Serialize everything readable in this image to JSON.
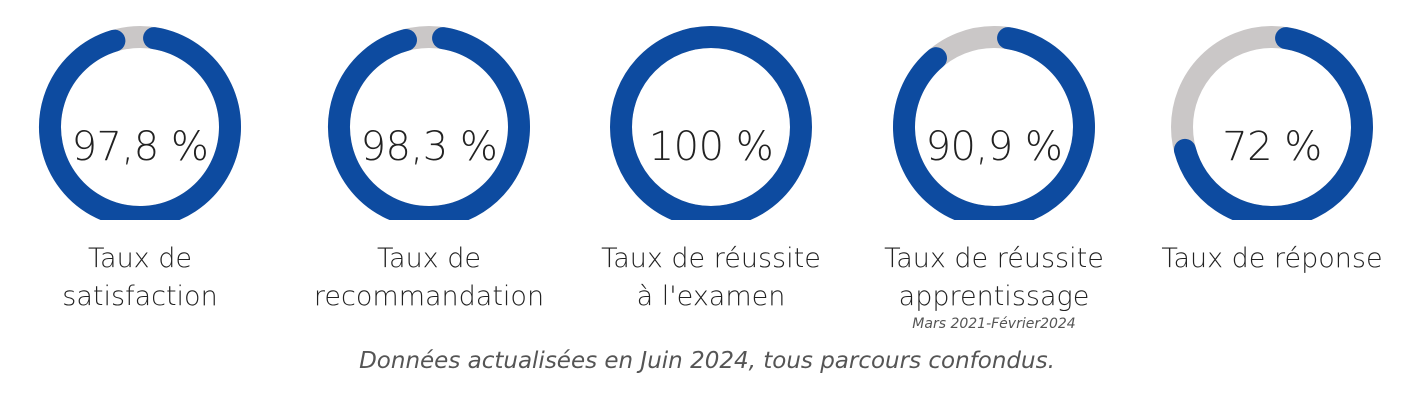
{
  "colors": {
    "accent": "#0d4ba0",
    "track": "#cac7c7",
    "text": "#222222",
    "note": "#555555"
  },
  "chart_data": {
    "type": "donut",
    "unit": "%",
    "items": [
      {
        "value_label": "97,8 %",
        "value": 97.8,
        "label_lines": [
          "Taux de",
          "satisfaction"
        ],
        "note": ""
      },
      {
        "value_label": "98,3 %",
        "value": 98.3,
        "label_lines": [
          "Taux de",
          "recommandation"
        ],
        "note": ""
      },
      {
        "value_label": "100 %",
        "value": 100,
        "label_lines": [
          "Taux de réussite",
          "à l'examen"
        ],
        "note": ""
      },
      {
        "value_label": "90,9 %",
        "value": 90.9,
        "label_lines": [
          "Taux de réussite",
          "apprentissage"
        ],
        "note": "Mars 2021-Février2024"
      },
      {
        "value_label": "72 %",
        "value": 72,
        "label_lines": [
          "Taux de réponse"
        ],
        "note": ""
      }
    ]
  },
  "footnote": "Données actualisées en Juin 2024, tous parcours confondus."
}
